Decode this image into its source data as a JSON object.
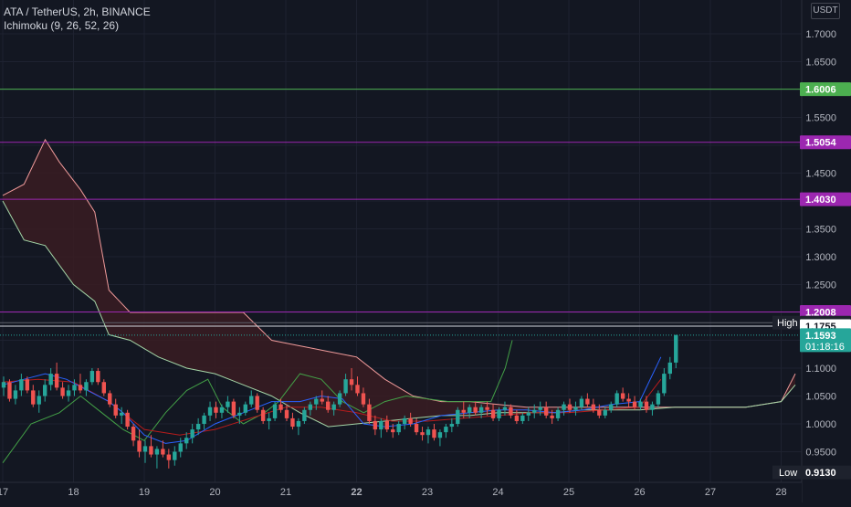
{
  "header": {
    "symbol_line": "ATA / TetherUS, 2h, BINANCE",
    "indicator_line": "Ichimoku (9, 26, 52, 26)",
    "currency_button": "USDT"
  },
  "colors": {
    "background": "#131722",
    "up": "#26a69a",
    "down": "#ef5350",
    "conversion_line": "#2962ff",
    "base_line": "#b71c1c",
    "lagging_span": "#43a047",
    "leading_span_a": "#a5d6a7",
    "leading_span_b": "#ef9a9a",
    "cloud_fill": "#3a1c22",
    "level_green": "#4caf50",
    "level_purple": "#9c27b0",
    "price_tag": "#26a69a"
  },
  "chart_data": {
    "type": "candlestick",
    "symbol": "ATA / TetherUS",
    "timeframe": "2h",
    "exchange": "BINANCE",
    "indicator": "Ichimoku (9, 26, 52, 26)",
    "y_axis": {
      "scale": "linear",
      "range": [
        0.89,
        1.78
      ],
      "ticks": [
        "0.9500",
        "1.0000",
        "1.0500",
        "1.1000",
        "1.1500",
        "1.2000",
        "1.2500",
        "1.3000",
        "1.3500",
        "1.4000",
        "1.4500",
        "1.5000",
        "1.5500",
        "1.6000",
        "1.6500",
        "1.7000"
      ]
    },
    "x_axis": {
      "ticks": [
        {
          "label": "17",
          "day": 17
        },
        {
          "label": "18",
          "day": 18
        },
        {
          "label": "19",
          "day": 19
        },
        {
          "label": "20",
          "day": 20
        },
        {
          "label": "21",
          "day": 21
        },
        {
          "label": "22",
          "day": 22
        },
        {
          "label": "23",
          "day": 23
        },
        {
          "label": "24",
          "day": 24
        },
        {
          "label": "25",
          "day": 25
        },
        {
          "label": "26",
          "day": 26
        },
        {
          "label": "27",
          "day": 27
        },
        {
          "label": "28",
          "day": 28
        }
      ]
    },
    "horizontal_lines": [
      {
        "value": 1.6006,
        "label": "1.6006",
        "color": "#4caf50"
      },
      {
        "value": 1.5054,
        "label": "1.5054",
        "color": "#9c27b0"
      },
      {
        "value": 1.403,
        "label": "1.4030",
        "color": "#9c27b0"
      },
      {
        "value": 1.2008,
        "label": "1.2008",
        "color": "#9c27b0"
      }
    ],
    "markers": {
      "high": {
        "label": "High",
        "value_label": "1.1816",
        "value": 1.1816
      },
      "crosshair": {
        "value_label": "1.1755",
        "value": 1.1755
      },
      "last_price": {
        "value_label": "1.1593",
        "value": 1.1593,
        "countdown": "01:18:16"
      },
      "low": {
        "label": "Low",
        "value_label": "0.9130",
        "value": 0.913
      }
    },
    "candles": {
      "start_day": 17,
      "bars_per_day": 12,
      "ohlc": [
        [
          1.065,
          1.085,
          1.05,
          1.075
        ],
        [
          1.075,
          1.08,
          1.04,
          1.045
        ],
        [
          1.045,
          1.07,
          1.035,
          1.06
        ],
        [
          1.06,
          1.09,
          1.05,
          1.08
        ],
        [
          1.08,
          1.085,
          1.055,
          1.06
        ],
        [
          1.06,
          1.07,
          1.03,
          1.035
        ],
        [
          1.035,
          1.06,
          1.02,
          1.05
        ],
        [
          1.05,
          1.08,
          1.04,
          1.07
        ],
        [
          1.07,
          1.1,
          1.06,
          1.09
        ],
        [
          1.09,
          1.11,
          1.06,
          1.065
        ],
        [
          1.065,
          1.075,
          1.045,
          1.05
        ],
        [
          1.05,
          1.07,
          1.04,
          1.06
        ],
        [
          1.06,
          1.08,
          1.05,
          1.07
        ],
        [
          1.07,
          1.09,
          1.055,
          1.06
        ],
        [
          1.06,
          1.08,
          1.05,
          1.075
        ],
        [
          1.075,
          1.1,
          1.07,
          1.095
        ],
        [
          1.095,
          1.1,
          1.07,
          1.075
        ],
        [
          1.075,
          1.08,
          1.05,
          1.055
        ],
        [
          1.055,
          1.06,
          1.03,
          1.035
        ],
        [
          1.035,
          1.045,
          1.01,
          1.015
        ],
        [
          1.015,
          1.03,
          1.0,
          1.02
        ],
        [
          1.02,
          1.025,
          0.99,
          0.995
        ],
        [
          0.995,
          1.0,
          0.96,
          0.97
        ],
        [
          0.97,
          0.99,
          0.94,
          0.95
        ],
        [
          0.95,
          0.97,
          0.93,
          0.96
        ],
        [
          0.96,
          0.98,
          0.94,
          0.945
        ],
        [
          0.945,
          0.96,
          0.92,
          0.955
        ],
        [
          0.955,
          0.97,
          0.94,
          0.945
        ],
        [
          0.945,
          0.955,
          0.92,
          0.935
        ],
        [
          0.935,
          0.96,
          0.925,
          0.95
        ],
        [
          0.95,
          0.975,
          0.94,
          0.965
        ],
        [
          0.965,
          0.985,
          0.955,
          0.975
        ],
        [
          0.975,
          1.0,
          0.965,
          0.99
        ],
        [
          0.99,
          1.01,
          0.98,
          1.0
        ],
        [
          1.0,
          1.02,
          0.99,
          1.015
        ],
        [
          1.015,
          1.04,
          1.005,
          1.03
        ],
        [
          1.03,
          1.04,
          1.01,
          1.02
        ],
        [
          1.02,
          1.035,
          1.01,
          1.03
        ],
        [
          1.03,
          1.05,
          1.02,
          1.04
        ],
        [
          1.04,
          1.045,
          1.01,
          1.015
        ],
        [
          1.015,
          1.03,
          1.0,
          1.02
        ],
        [
          1.02,
          1.04,
          1.015,
          1.035
        ],
        [
          1.035,
          1.06,
          1.03,
          1.05
        ],
        [
          1.05,
          1.055,
          1.02,
          1.025
        ],
        [
          1.025,
          1.03,
          1.0,
          1.005
        ],
        [
          1.005,
          1.02,
          0.99,
          1.01
        ],
        [
          1.01,
          1.04,
          1.005,
          1.035
        ],
        [
          1.035,
          1.045,
          1.02,
          1.025
        ],
        [
          1.025,
          1.035,
          1.005,
          1.01
        ],
        [
          1.01,
          1.02,
          0.99,
          0.995
        ],
        [
          0.995,
          1.01,
          0.98,
          1.005
        ],
        [
          1.005,
          1.03,
          1.0,
          1.025
        ],
        [
          1.025,
          1.04,
          1.015,
          1.035
        ],
        [
          1.035,
          1.05,
          1.025,
          1.045
        ],
        [
          1.045,
          1.06,
          1.035,
          1.04
        ],
        [
          1.04,
          1.05,
          1.02,
          1.025
        ],
        [
          1.025,
          1.04,
          1.015,
          1.035
        ],
        [
          1.035,
          1.06,
          1.03,
          1.055
        ],
        [
          1.055,
          1.09,
          1.05,
          1.08
        ],
        [
          1.08,
          1.1,
          1.06,
          1.07
        ],
        [
          1.07,
          1.085,
          1.05,
          1.055
        ],
        [
          1.055,
          1.065,
          1.03,
          1.035
        ],
        [
          1.035,
          1.045,
          1.0,
          1.005
        ],
        [
          1.005,
          1.015,
          0.98,
          0.99
        ],
        [
          0.99,
          1.01,
          0.975,
          1.005
        ],
        [
          1.005,
          1.015,
          0.985,
          0.99
        ],
        [
          0.99,
          1.0,
          0.975,
          0.985
        ],
        [
          0.985,
          1.005,
          0.98,
          1.0
        ],
        [
          1.0,
          1.015,
          0.99,
          1.01
        ],
        [
          1.01,
          1.02,
          0.995,
          1.0
        ],
        [
          1.0,
          1.01,
          0.98,
          0.985
        ],
        [
          0.985,
          0.995,
          0.97,
          0.98
        ],
        [
          0.98,
          0.995,
          0.965,
          0.99
        ],
        [
          0.99,
          1.0,
          0.97,
          0.975
        ],
        [
          0.975,
          0.99,
          0.96,
          0.985
        ],
        [
          0.985,
          1.0,
          0.975,
          0.995
        ],
        [
          0.995,
          1.01,
          0.985,
          1.0
        ],
        [
          1.0,
          1.03,
          0.995,
          1.025
        ],
        [
          1.025,
          1.04,
          1.01,
          1.02
        ],
        [
          1.02,
          1.035,
          1.01,
          1.03
        ],
        [
          1.03,
          1.04,
          1.015,
          1.02
        ],
        [
          1.02,
          1.035,
          1.01,
          1.03
        ],
        [
          1.03,
          1.04,
          1.015,
          1.025
        ],
        [
          1.025,
          1.035,
          1.005,
          1.01
        ],
        [
          1.01,
          1.03,
          1.005,
          1.025
        ],
        [
          1.025,
          1.04,
          1.015,
          1.03
        ],
        [
          1.03,
          1.035,
          1.01,
          1.015
        ],
        [
          1.015,
          1.025,
          1.0,
          1.005
        ],
        [
          1.005,
          1.02,
          1.0,
          1.015
        ],
        [
          1.015,
          1.03,
          1.005,
          1.02
        ],
        [
          1.02,
          1.035,
          1.01,
          1.025
        ],
        [
          1.025,
          1.04,
          1.015,
          1.03
        ],
        [
          1.03,
          1.04,
          1.01,
          1.015
        ],
        [
          1.015,
          1.025,
          1.0,
          1.01
        ],
        [
          1.01,
          1.03,
          1.005,
          1.025
        ],
        [
          1.025,
          1.04,
          1.015,
          1.035
        ],
        [
          1.035,
          1.045,
          1.02,
          1.025
        ],
        [
          1.025,
          1.04,
          1.015,
          1.03
        ],
        [
          1.03,
          1.05,
          1.025,
          1.045
        ],
        [
          1.045,
          1.055,
          1.03,
          1.035
        ],
        [
          1.035,
          1.045,
          1.02,
          1.025
        ],
        [
          1.025,
          1.035,
          1.01,
          1.015
        ],
        [
          1.015,
          1.03,
          1.01,
          1.025
        ],
        [
          1.025,
          1.04,
          1.02,
          1.035
        ],
        [
          1.035,
          1.06,
          1.03,
          1.055
        ],
        [
          1.055,
          1.065,
          1.04,
          1.045
        ],
        [
          1.045,
          1.055,
          1.03,
          1.04
        ],
        [
          1.04,
          1.05,
          1.025,
          1.03
        ],
        [
          1.03,
          1.045,
          1.025,
          1.04
        ],
        [
          1.04,
          1.05,
          1.02,
          1.025
        ],
        [
          1.025,
          1.04,
          1.015,
          1.035
        ],
        [
          1.035,
          1.06,
          1.03,
          1.055
        ],
        [
          1.055,
          1.1,
          1.05,
          1.09
        ],
        [
          1.09,
          1.12,
          1.08,
          1.11
        ],
        [
          1.11,
          1.16,
          1.1,
          1.1593
        ]
      ]
    },
    "ichimoku": {
      "conversion_line": [
        [
          17,
          1.07
        ],
        [
          17.3,
          1.08
        ],
        [
          17.6,
          1.09
        ],
        [
          17.9,
          1.08
        ],
        [
          18.2,
          1.06
        ],
        [
          18.5,
          1.04
        ],
        [
          18.7,
          1.02
        ],
        [
          19.0,
          0.98
        ],
        [
          19.3,
          0.965
        ],
        [
          19.6,
          0.97
        ],
        [
          20.0,
          1.0
        ],
        [
          20.4,
          1.02
        ],
        [
          20.8,
          1.04
        ],
        [
          21.2,
          1.04
        ],
        [
          21.5,
          1.05
        ],
        [
          21.8,
          1.045
        ],
        [
          22.1,
          1.0
        ],
        [
          22.4,
          0.995
        ],
        [
          22.8,
          1.0
        ],
        [
          23.2,
          1.015
        ],
        [
          23.6,
          1.02
        ],
        [
          24.0,
          1.025
        ],
        [
          24.4,
          1.025
        ],
        [
          24.8,
          1.02
        ],
        [
          25.2,
          1.025
        ],
        [
          25.6,
          1.035
        ],
        [
          26.0,
          1.04
        ],
        [
          26.3,
          1.12
        ]
      ],
      "base_line": [
        [
          17,
          1.075
        ],
        [
          17.5,
          1.08
        ],
        [
          18.0,
          1.075
        ],
        [
          18.5,
          1.04
        ],
        [
          19.0,
          0.99
        ],
        [
          19.5,
          0.98
        ],
        [
          20.0,
          0.99
        ],
        [
          20.5,
          1.01
        ],
        [
          21.0,
          1.03
        ],
        [
          21.5,
          1.03
        ],
        [
          22.0,
          1.02
        ],
        [
          22.5,
          1.005
        ],
        [
          23.0,
          1.005
        ],
        [
          23.5,
          1.01
        ],
        [
          24.0,
          1.015
        ],
        [
          24.5,
          1.02
        ],
        [
          25.0,
          1.02
        ],
        [
          25.5,
          1.025
        ],
        [
          26.0,
          1.03
        ],
        [
          26.3,
          1.08
        ]
      ],
      "lagging_span": [
        [
          17,
          0.93
        ],
        [
          17.4,
          1.0
        ],
        [
          17.8,
          1.02
        ],
        [
          18.1,
          1.05
        ],
        [
          18.4,
          1.02
        ],
        [
          18.7,
          0.99
        ],
        [
          19.0,
          0.97
        ],
        [
          19.3,
          1.02
        ],
        [
          19.6,
          1.06
        ],
        [
          19.9,
          1.08
        ],
        [
          20.1,
          1.03
        ],
        [
          20.4,
          1.0
        ],
        [
          20.7,
          1.02
        ],
        [
          20.9,
          1.04
        ],
        [
          21.2,
          1.09
        ],
        [
          21.5,
          1.08
        ],
        [
          21.8,
          1.04
        ],
        [
          22.1,
          1.02
        ],
        [
          22.4,
          1.04
        ],
        [
          22.7,
          1.05
        ],
        [
          23.0,
          1.045
        ],
        [
          23.3,
          1.04
        ],
        [
          23.6,
          1.04
        ],
        [
          23.9,
          1.04
        ],
        [
          24.1,
          1.1
        ],
        [
          24.2,
          1.15
        ]
      ],
      "leading_span_a": [
        [
          17,
          1.4
        ],
        [
          17.3,
          1.33
        ],
        [
          17.6,
          1.32
        ],
        [
          18.0,
          1.25
        ],
        [
          18.3,
          1.22
        ],
        [
          18.5,
          1.16
        ],
        [
          18.8,
          1.15
        ],
        [
          19.2,
          1.12
        ],
        [
          19.6,
          1.1
        ],
        [
          20.0,
          1.09
        ],
        [
          20.4,
          1.07
        ],
        [
          20.8,
          1.05
        ],
        [
          21.2,
          1.02
        ],
        [
          21.6,
          0.995
        ],
        [
          22.0,
          1.0
        ],
        [
          22.4,
          1.005
        ],
        [
          22.8,
          1.01
        ],
        [
          23.2,
          1.015
        ],
        [
          23.6,
          1.015
        ],
        [
          24.0,
          1.02
        ],
        [
          24.4,
          1.02
        ],
        [
          24.8,
          1.02
        ],
        [
          25.2,
          1.025
        ],
        [
          25.6,
          1.025
        ],
        [
          26.0,
          1.025
        ],
        [
          26.5,
          1.03
        ],
        [
          27.0,
          1.03
        ],
        [
          27.5,
          1.03
        ],
        [
          28.0,
          1.04
        ],
        [
          28.2,
          1.07
        ]
      ],
      "leading_span_b": [
        [
          17,
          1.41
        ],
        [
          17.3,
          1.43
        ],
        [
          17.6,
          1.51
        ],
        [
          17.8,
          1.47
        ],
        [
          18.1,
          1.42
        ],
        [
          18.3,
          1.38
        ],
        [
          18.5,
          1.24
        ],
        [
          18.8,
          1.2
        ],
        [
          19.2,
          1.2
        ],
        [
          19.6,
          1.2
        ],
        [
          20.0,
          1.2
        ],
        [
          20.4,
          1.2
        ],
        [
          20.8,
          1.15
        ],
        [
          21.2,
          1.14
        ],
        [
          21.6,
          1.13
        ],
        [
          22.0,
          1.12
        ],
        [
          22.4,
          1.08
        ],
        [
          22.8,
          1.05
        ],
        [
          23.2,
          1.04
        ],
        [
          23.6,
          1.04
        ],
        [
          24.0,
          1.035
        ],
        [
          24.4,
          1.03
        ],
        [
          24.8,
          1.03
        ],
        [
          25.2,
          1.03
        ],
        [
          25.6,
          1.03
        ],
        [
          26.0,
          1.03
        ],
        [
          26.5,
          1.03
        ],
        [
          27.0,
          1.03
        ],
        [
          27.5,
          1.03
        ],
        [
          28.0,
          1.04
        ],
        [
          28.2,
          1.09
        ]
      ]
    }
  }
}
